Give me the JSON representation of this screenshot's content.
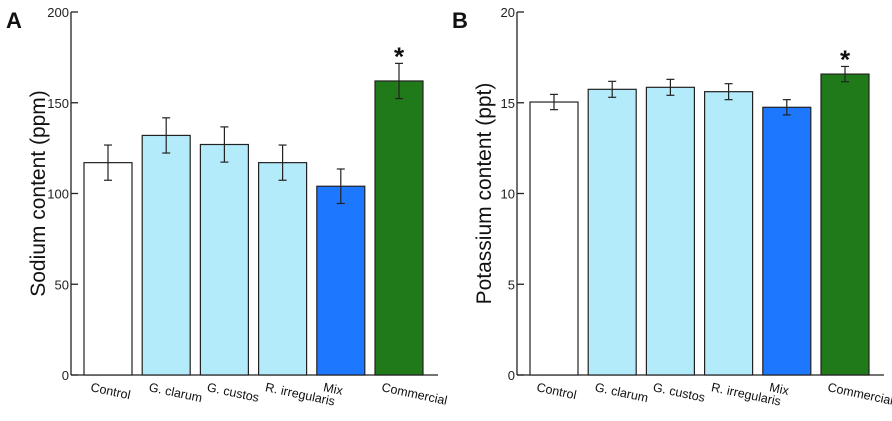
{
  "chart_data": [
    {
      "type": "bar",
      "panel_label": "A",
      "title": "",
      "xlabel": "",
      "ylabel": "Sodium content (ppm)",
      "ylim": [
        0,
        200
      ],
      "yticks": [
        0,
        50,
        100,
        150,
        200
      ],
      "categories": [
        "Control",
        "G. clarum",
        "G. custos",
        "R. irregularis",
        "Mix",
        "Commercial"
      ],
      "values": [
        117,
        132,
        127,
        117,
        104,
        162
      ],
      "errors": [
        9.7,
        9.7,
        9.7,
        9.7,
        9.5,
        9.7
      ],
      "colors": [
        "#ffffff",
        "#b3ebfb",
        "#b3ebfb",
        "#b3ebfb",
        "#1e78ff",
        "#217a1a"
      ],
      "annotations": [
        {
          "category": "Commercial",
          "text": "*"
        }
      ],
      "grid": false
    },
    {
      "type": "bar",
      "panel_label": "B",
      "title": "",
      "xlabel": "",
      "ylabel": "Potassium content (ppt)",
      "ylim": [
        0,
        20
      ],
      "yticks": [
        0,
        5,
        10,
        15,
        20
      ],
      "categories": [
        "Control",
        "G. clarum",
        "G. custos",
        "R. irregularis",
        "Mix",
        "Commercial"
      ],
      "values": [
        15.04,
        15.74,
        15.85,
        15.61,
        14.75,
        16.58
      ],
      "errors": [
        0.42,
        0.44,
        0.44,
        0.44,
        0.42,
        0.42
      ],
      "colors": [
        "#ffffff",
        "#b3ebfb",
        "#b3ebfb",
        "#b3ebfb",
        "#1e78ff",
        "#217a1a"
      ],
      "annotations": [
        {
          "category": "Commercial",
          "text": "*"
        }
      ],
      "grid": false
    }
  ]
}
